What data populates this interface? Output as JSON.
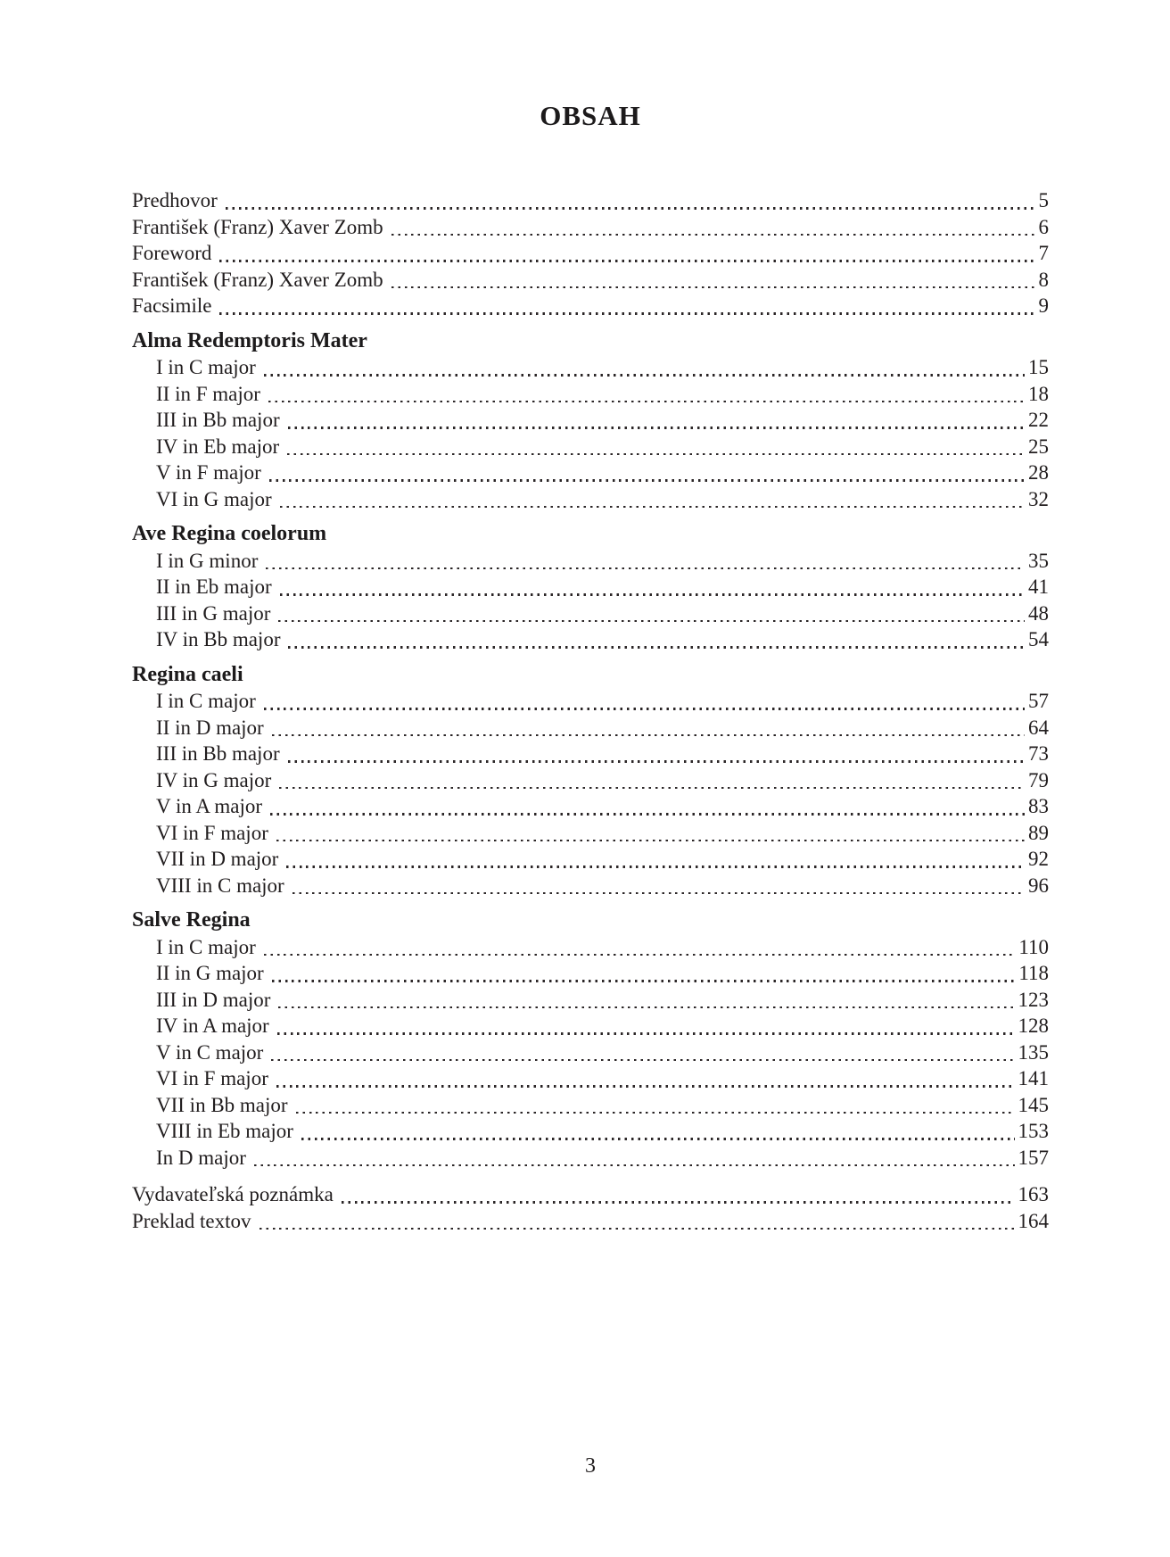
{
  "page": {
    "title": "OBSAH",
    "footer_page_number": "3"
  },
  "toc": {
    "front_matter": [
      {
        "label": "Predhovor",
        "page": "5"
      },
      {
        "label": "František (Franz) Xaver Zomb",
        "page": "6"
      },
      {
        "label": "Foreword",
        "page": "7"
      },
      {
        "label": "František (Franz) Xaver Zomb",
        "page": "8"
      },
      {
        "label": "Facsimile",
        "page": "9"
      }
    ],
    "sections": [
      {
        "heading": "Alma Redemptoris Mater",
        "items": [
          {
            "label": "I in C major",
            "page": "15"
          },
          {
            "label": "II in F major",
            "page": "18"
          },
          {
            "label": "III in Bb major",
            "page": "22"
          },
          {
            "label": "IV in Eb major",
            "page": "25"
          },
          {
            "label": "V in F major",
            "page": "28"
          },
          {
            "label": "VI in G major",
            "page": "32"
          }
        ]
      },
      {
        "heading": "Ave Regina coelorum",
        "items": [
          {
            "label": "I in G minor",
            "page": "35"
          },
          {
            "label": "II in Eb major",
            "page": "41"
          },
          {
            "label": "III in G major",
            "page": "48"
          },
          {
            "label": "IV in Bb major",
            "page": "54"
          }
        ]
      },
      {
        "heading": "Regina caeli",
        "items": [
          {
            "label": "I in C major",
            "page": "57"
          },
          {
            "label": "II in D major",
            "page": "64"
          },
          {
            "label": "III in Bb major",
            "page": "73"
          },
          {
            "label": "IV in G major",
            "page": "79"
          },
          {
            "label": "V in A major",
            "page": "83"
          },
          {
            "label": "VI in F major",
            "page": "89"
          },
          {
            "label": "VII in D major",
            "page": "92"
          },
          {
            "label": "VIII in C major",
            "page": "96"
          }
        ]
      },
      {
        "heading": "Salve Regina",
        "items": [
          {
            "label": "I in C major",
            "page": "110"
          },
          {
            "label": "II in G major",
            "page": "118"
          },
          {
            "label": "III in D major",
            "page": "123"
          },
          {
            "label": "IV in A major",
            "page": "128"
          },
          {
            "label": "V in C major",
            "page": "135"
          },
          {
            "label": "VI in F major",
            "page": "141"
          },
          {
            "label": "VII in Bb major",
            "page": "145"
          },
          {
            "label": "VIII in Eb major",
            "page": "153"
          },
          {
            "label": "In D major",
            "page": "157"
          }
        ]
      }
    ],
    "back_matter": [
      {
        "label": "Vydavateľská poznámka",
        "page": "163"
      },
      {
        "label": "Preklad textov",
        "page": "164"
      }
    ]
  }
}
